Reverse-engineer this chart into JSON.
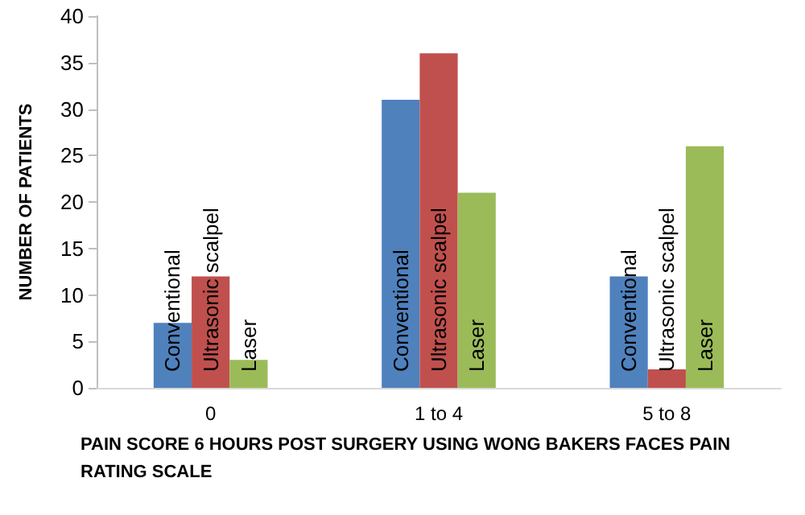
{
  "chart_data": {
    "type": "bar",
    "xlabel": "PAIN SCORE 6 HOURS POST SURGERY USING WONG BAKERS FACES PAIN RATING SCALE",
    "ylabel": "NUMBER OF PATIENTS",
    "categories": [
      "0",
      "1 to 4",
      "5 to 8"
    ],
    "series": [
      {
        "name": "Conventional",
        "color": "#4f81bd",
        "values": [
          7,
          31,
          12
        ]
      },
      {
        "name": "Ultrasonic scalpel",
        "color": "#c0504d",
        "values": [
          12,
          36,
          2
        ]
      },
      {
        "name": "Laser",
        "color": "#9bbb59",
        "values": [
          3,
          21,
          26
        ]
      }
    ],
    "ylim": [
      0,
      40
    ],
    "yticks": [
      0,
      5,
      10,
      15,
      20,
      25,
      30,
      35,
      40
    ],
    "grid": false,
    "legend": false
  }
}
